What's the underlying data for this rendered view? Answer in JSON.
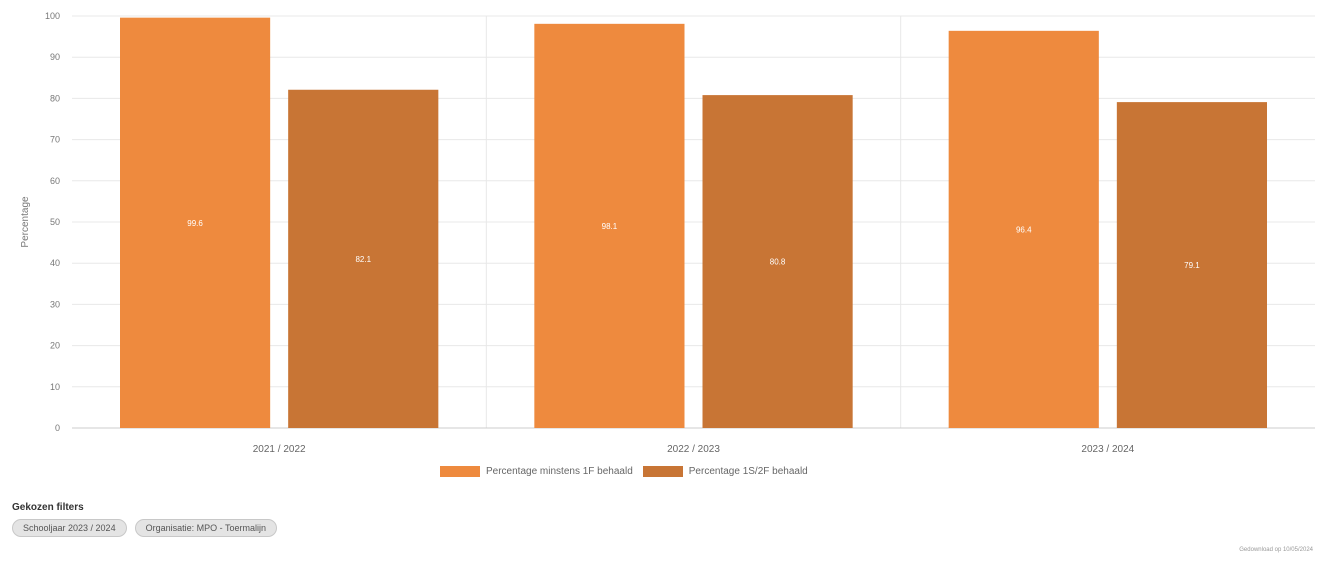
{
  "chart_data": {
    "type": "bar",
    "categories": [
      "2021 / 2022",
      "2022 / 2023",
      "2023 / 2024"
    ],
    "series": [
      {
        "name": "Percentage minstens 1F behaald",
        "values": [
          99.6,
          98.1,
          96.4
        ],
        "color": "#EE8A3E"
      },
      {
        "name": "Percentage 1S/2F behaald",
        "values": [
          82.1,
          80.8,
          79.1
        ],
        "color": "#C87535"
      }
    ],
    "data_labels": [
      [
        "99.6",
        "82.1"
      ],
      [
        "98.1",
        "80.8"
      ],
      [
        "96.4",
        "79.1"
      ]
    ],
    "ylabel": "Percentage",
    "ylim": [
      0,
      100
    ],
    "yticks": [
      0,
      10,
      20,
      30,
      40,
      50,
      60,
      70,
      80,
      90,
      100
    ],
    "grid": true,
    "legend_position": "bottom-center"
  },
  "filters": {
    "title": "Gekozen filters",
    "chips": [
      "Schooljaar 2023 / 2024",
      "Organisatie: MPO - Toermalijn"
    ]
  },
  "footer": {
    "downloaded": "Gedownload op 10/05/2024"
  }
}
